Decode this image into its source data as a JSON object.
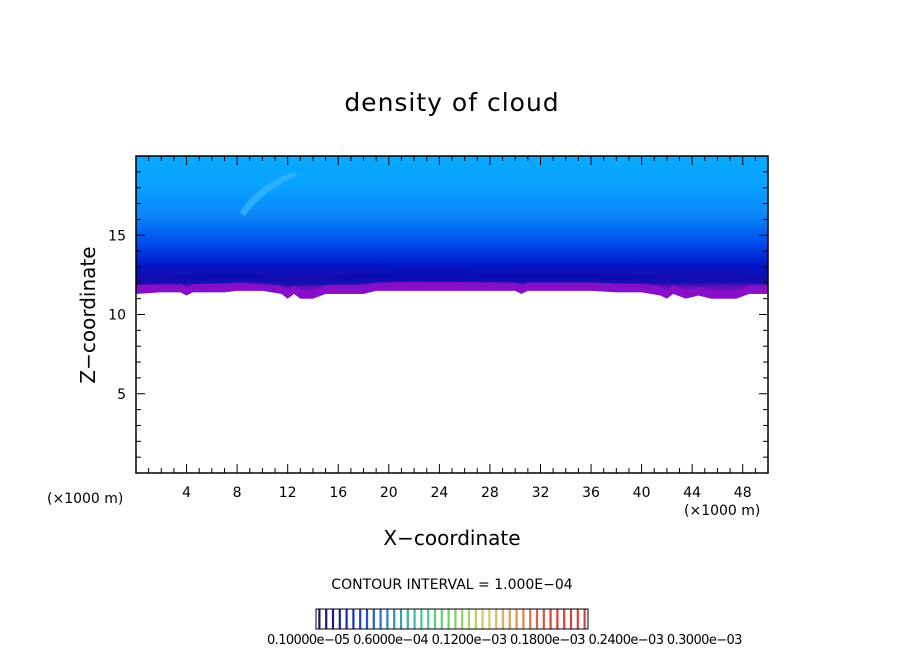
{
  "chart_data": {
    "type": "heatmap",
    "title": "density of cloud",
    "xlabel": "X−coordinate",
    "ylabel": "Z−coordinate",
    "x_unit_label": "(×1000 m)",
    "xlim": [
      0,
      50
    ],
    "ylim": [
      0,
      20
    ],
    "x_ticks": [
      4,
      8,
      12,
      16,
      20,
      24,
      28,
      32,
      36,
      40,
      44,
      48
    ],
    "y_ticks": [
      5,
      10,
      15
    ],
    "contour_interval_label": "CONTOUR INTERVAL = 1.000E−04",
    "colorbar_labels_text": "0.10000e−05 0.6000e−04 0.1200e−03 0.1800e−03 0.2400e−03 0.3000e−03",
    "cloud_base_km": [
      [
        0,
        11.3
      ],
      [
        2,
        11.4
      ],
      [
        3.5,
        11.4
      ],
      [
        4,
        11.2
      ],
      [
        4.5,
        11.4
      ],
      [
        7,
        11.4
      ],
      [
        8,
        11.5
      ],
      [
        10,
        11.5
      ],
      [
        11.5,
        11.3
      ],
      [
        12,
        11.0
      ],
      [
        12.5,
        11.3
      ],
      [
        13,
        11.0
      ],
      [
        14,
        11.0
      ],
      [
        15,
        11.3
      ],
      [
        18,
        11.3
      ],
      [
        19,
        11.5
      ],
      [
        24,
        11.5
      ],
      [
        30,
        11.5
      ],
      [
        30.5,
        11.3
      ],
      [
        31,
        11.5
      ],
      [
        36,
        11.5
      ],
      [
        38,
        11.4
      ],
      [
        40,
        11.4
      ],
      [
        41.5,
        11.2
      ],
      [
        42,
        11.0
      ],
      [
        42.5,
        11.3
      ],
      [
        43.5,
        11.0
      ],
      [
        44.5,
        11.2
      ],
      [
        45.5,
        11.0
      ],
      [
        47.5,
        11.0
      ],
      [
        48.5,
        11.3
      ],
      [
        50,
        11.3
      ]
    ],
    "colors": {
      "top": "#0aa9ff",
      "mid": "#0058ff",
      "deep": "#0010b4",
      "base": "#8a10c8",
      "frame": "#000000"
    },
    "colorbar_colors": [
      "#20105a",
      "#1830c0",
      "#2a7ad8",
      "#3cc8a0",
      "#7ad060",
      "#d0d070",
      "#e09050",
      "#e04030",
      "#d84040"
    ]
  }
}
